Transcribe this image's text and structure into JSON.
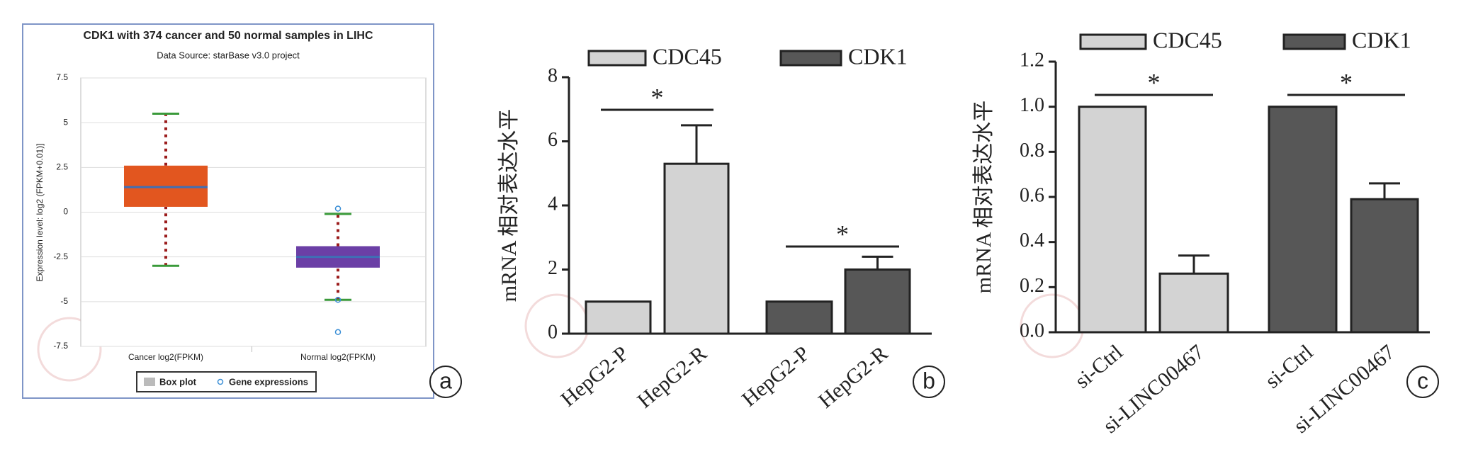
{
  "chart_data": [
    {
      "type": "box",
      "title": "CDK1 with 374 cancer and 50 normal samples in LIHC",
      "subtitle": "Data Source: starBase v3.0 project",
      "y_label": "Expression level: log2 (FPKM+0.01)]",
      "categories": [
        "Cancer log2(FPKM)",
        "Normal log2(FPKM)"
      ],
      "boxes": [
        {
          "low": -3,
          "q1": 0.3,
          "median": 1.4,
          "q3": 2.6,
          "high": 5.5,
          "color": "#e2561f"
        },
        {
          "low": -4.9,
          "q1": -3.1,
          "median": -2.5,
          "q3": -1.9,
          "high": -0.1,
          "color": "#6b3fa6"
        }
      ],
      "outliers": [
        [],
        [
          0.2,
          -4.9,
          -6.7
        ]
      ],
      "legend": [
        "Box plot",
        "Gene expressions"
      ],
      "ylim": [
        -7.5,
        7.5
      ],
      "yticks": [
        7.5,
        5,
        2.5,
        0,
        -2.5,
        -5,
        -7.5
      ],
      "grid": true,
      "panel": "a"
    },
    {
      "type": "bar",
      "y_label": "mRNA 相对表达水平",
      "categories": [
        "HepG2-P",
        "HepG2-R",
        "HepG2-P",
        "HepG2-R"
      ],
      "series": [
        {
          "name": "CDC45",
          "color": "#d3d3d3",
          "values": [
            1,
            5.3,
            null,
            null
          ],
          "errors": [
            null,
            1.2,
            null,
            null
          ]
        },
        {
          "name": "CDK1",
          "color": "#575757",
          "values": [
            null,
            null,
            1,
            2.0
          ],
          "errors": [
            null,
            null,
            null,
            0.4
          ]
        }
      ],
      "annotations": [
        "*",
        "*"
      ],
      "ylim": [
        0,
        8
      ],
      "yticks": [
        0,
        2,
        4,
        6,
        8
      ],
      "panel": "b"
    },
    {
      "type": "bar",
      "y_label": "mRNA 相对表达水平",
      "categories": [
        "si-Ctrl",
        "si-LINC00467",
        "si-Ctrl",
        "si-LINC00467"
      ],
      "series": [
        {
          "name": "CDC45",
          "color": "#d3d3d3",
          "values": [
            1.0,
            0.26,
            null,
            null
          ],
          "errors": [
            null,
            0.08,
            null,
            null
          ]
        },
        {
          "name": "CDK1",
          "color": "#575757",
          "values": [
            null,
            null,
            1.0,
            0.59
          ],
          "errors": [
            null,
            null,
            null,
            0.07
          ]
        }
      ],
      "annotations": [
        "*",
        "*"
      ],
      "ylim": [
        0,
        1.2
      ],
      "yticks": [
        {
          "value": 0,
          "label": "0.0"
        },
        0.2,
        0.4,
        0.6,
        0.8,
        {
          "value": 1,
          "label": "1.0"
        },
        1.2
      ],
      "panel": "c"
    }
  ]
}
